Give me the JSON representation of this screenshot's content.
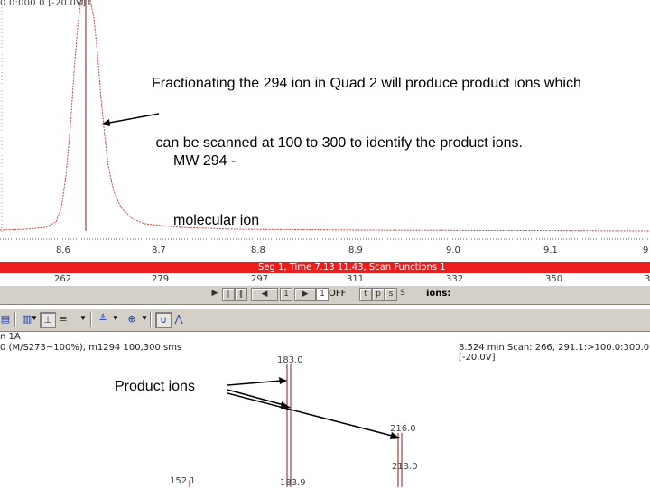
{
  "chromatogram": {
    "header_fragment": "0 0:000 0 [-20.0V]",
    "peak_marker_label": "0 1",
    "annotation_line1": "Fractionating the 294 ion in Quad 2 will produce product ions which",
    "annotation_line2": " can be scanned at 100 to 300 to identify the product ions.",
    "mw_label_line1": "MW 294 -",
    "mw_label_line2": "molecular ion",
    "time_ticks": [
      "8.6",
      "8.7",
      "8.8",
      "8.9",
      "9.0",
      "9.1",
      "9"
    ]
  },
  "segment_bar": {
    "text": "Seg 1, Time 7.13 11.43, Scan Functions 1",
    "background_color": "#ee1d1d"
  },
  "scan_numbers": [
    "262",
    "279",
    "297",
    "311",
    "332",
    "350",
    "3"
  ],
  "controls": {
    "buttons": [
      "▶",
      "|",
      "‖",
      "◀",
      "1",
      "▶",
      "1"
    ],
    "off_label": "OFF",
    "mini_buttons": [
      "t",
      "p",
      "s",
      "S"
    ],
    "ions_label": "ions:"
  },
  "toolbar": {
    "icons": [
      "zoom-out-icon",
      "zoom-in-icon",
      "peak-pick-icon",
      "baseline-icon",
      "range-icon",
      "spectrum-icon",
      "compare-icon"
    ]
  },
  "spectrum_info": {
    "function_label": "n 1A",
    "file_line": "0 (M/S273~100%), m1294 100,300.sms",
    "scan_line": "8.524 min  Scan: 266, 291.1:>100.0:300.0 [-20.0V]"
  },
  "product_ions": {
    "label": "Product ions",
    "peaks": [
      {
        "label": "183.0"
      },
      {
        "label": "216.0"
      },
      {
        "label": "213.0"
      },
      {
        "label": "152.1"
      },
      {
        "label": "183.9"
      }
    ]
  }
}
